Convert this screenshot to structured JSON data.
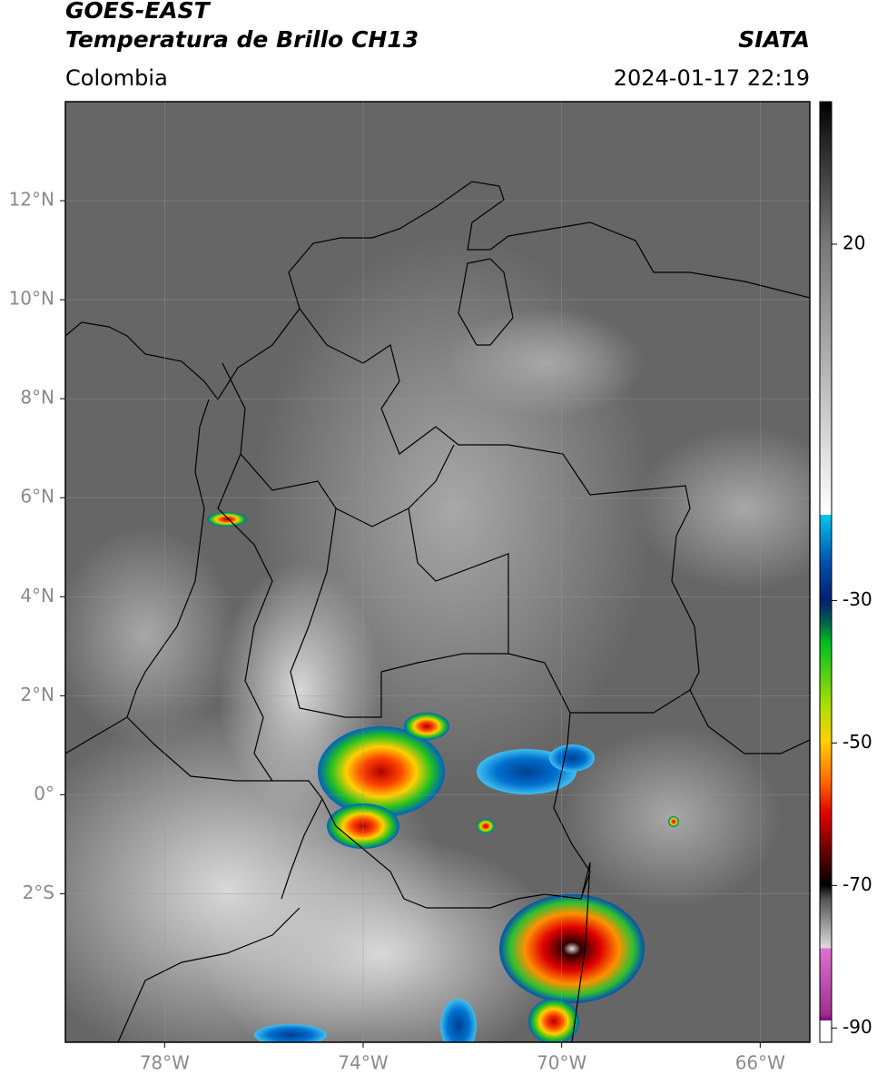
{
  "header": {
    "title": "GOES-EAST",
    "subtitle": "Temperatura de Brillo CH13",
    "source": "SIATA",
    "region": "Colombia",
    "datetime": "2024-01-17 22:19"
  },
  "map": {
    "lonlim": [
      -80,
      -65
    ],
    "latlim": [
      -5,
      14
    ],
    "xticks": [
      {
        "value": -78,
        "label": "78°W"
      },
      {
        "value": -74,
        "label": "74°W"
      },
      {
        "value": -70,
        "label": "70°W"
      },
      {
        "value": -66,
        "label": "66°W"
      }
    ],
    "yticks": [
      {
        "value": 12,
        "label": "12°N"
      },
      {
        "value": 10,
        "label": "10°N"
      },
      {
        "value": 8,
        "label": "8°N"
      },
      {
        "value": 6,
        "label": "6°N"
      },
      {
        "value": 4,
        "label": "4°N"
      },
      {
        "value": 2,
        "label": "2°N"
      },
      {
        "value": 0,
        "label": "0°"
      },
      {
        "value": -2,
        "label": "2°S"
      }
    ]
  },
  "colorbar": {
    "lim": [
      -92,
      40
    ],
    "ticks": [
      20,
      -30,
      -50,
      -70,
      -90
    ]
  }
}
